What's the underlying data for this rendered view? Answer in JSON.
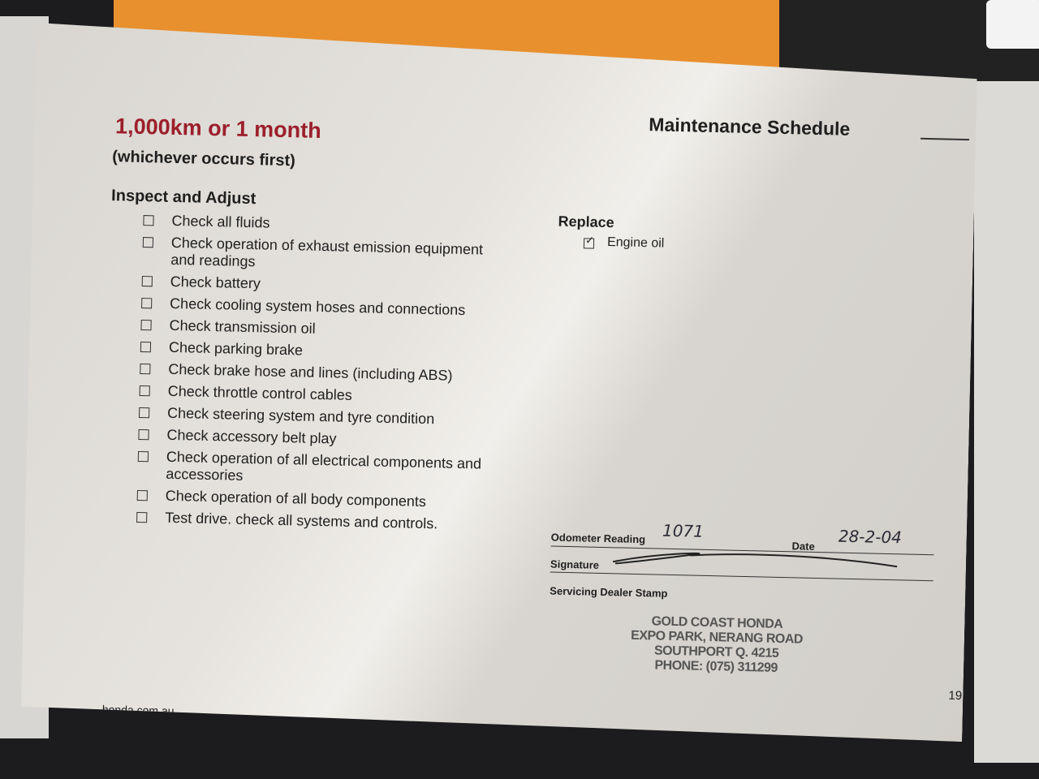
{
  "heading": {
    "interval": "1,000km or 1 month",
    "condition": "(whichever occurs first)",
    "section_title": "Maintenance Schedule"
  },
  "inspect": {
    "title": "Inspect and Adjust",
    "items": [
      "Check all fluids",
      "Check operation of exhaust emission equipment and readings",
      "Check battery",
      "Check cooling system hoses and connections",
      "Check transmission oil",
      "Check parking brake",
      "Check brake hose and lines (including ABS)",
      "Check throttle control cables",
      "Check steering system and tyre condition",
      "Check accessory belt play",
      "Check operation of all electrical components and accessories",
      "Check operation of all body components",
      "Test drive. check all systems and controls."
    ]
  },
  "replace": {
    "title": "Replace",
    "items": [
      {
        "label": "Engine oil",
        "checked": true
      }
    ]
  },
  "record": {
    "odometer_label": "Odometer Reading",
    "odometer_value": "1071",
    "date_label": "Date",
    "date_value": "28-2-04",
    "signature_label": "Signature",
    "stamp_label": "Servicing Dealer Stamp",
    "stamp_lines": [
      "GOLD COAST HONDA",
      "EXPO PARK, NERANG ROAD",
      "SOUTHPORT Q. 4215",
      "PHONE: (075) 311299"
    ]
  },
  "footer": {
    "website": "honda.com.au",
    "page_number": "19"
  },
  "colors": {
    "accent_red": "#9c1f2c"
  }
}
